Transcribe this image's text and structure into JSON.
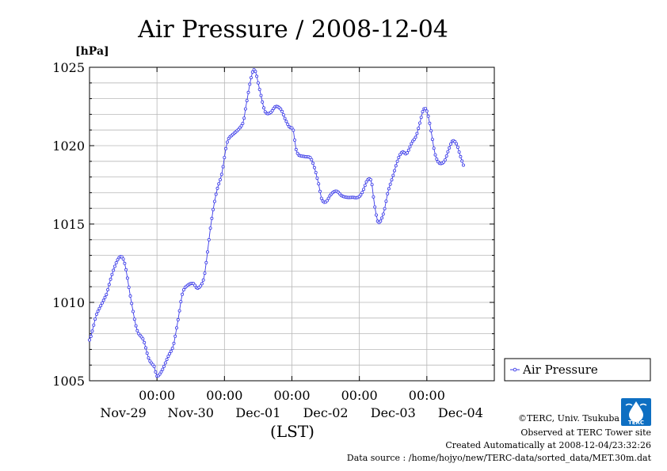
{
  "chart_data": {
    "type": "line",
    "title": "Air Pressure / 2008-12-04",
    "ylabel": "[hPa]",
    "xlabel": "(LST)",
    "ylim": [
      1005,
      1025
    ],
    "yticks": [
      "1025",
      "1020",
      "1015",
      "1010",
      "1005"
    ],
    "xlim_days": [
      0,
      6
    ],
    "xtick_time_labels": [
      "00:00",
      "00:00",
      "00:00",
      "00:00",
      "00:00"
    ],
    "xtick_date_labels": [
      "Nov-29",
      "Nov-30",
      "Dec-01",
      "Dec-02",
      "Dec-03",
      "Dec-04"
    ],
    "grid": true,
    "legend_position": "right",
    "series": [
      {
        "name": "Air Pressure",
        "color": "#3a3ae8",
        "anchors": [
          [
            0.0,
            1007.6
          ],
          [
            0.1,
            1009.2
          ],
          [
            0.25,
            1010.5
          ],
          [
            0.35,
            1012.0
          ],
          [
            0.45,
            1012.9
          ],
          [
            0.52,
            1012.5
          ],
          [
            0.6,
            1010.5
          ],
          [
            0.7,
            1008.3
          ],
          [
            0.8,
            1007.6
          ],
          [
            0.88,
            1006.4
          ],
          [
            0.96,
            1005.9
          ],
          [
            1.0,
            1005.3
          ],
          [
            1.08,
            1005.7
          ],
          [
            1.16,
            1006.5
          ],
          [
            1.24,
            1007.2
          ],
          [
            1.3,
            1008.6
          ],
          [
            1.38,
            1010.6
          ],
          [
            1.46,
            1011.1
          ],
          [
            1.54,
            1011.2
          ],
          [
            1.6,
            1010.9
          ],
          [
            1.68,
            1011.3
          ],
          [
            1.72,
            1012.3
          ],
          [
            1.8,
            1015.0
          ],
          [
            1.88,
            1017.0
          ],
          [
            1.96,
            1018.2
          ],
          [
            2.04,
            1020.2
          ],
          [
            2.12,
            1020.7
          ],
          [
            2.2,
            1021.0
          ],
          [
            2.28,
            1021.5
          ],
          [
            2.32,
            1022.6
          ],
          [
            2.4,
            1024.4
          ],
          [
            2.45,
            1024.8
          ],
          [
            2.52,
            1023.6
          ],
          [
            2.6,
            1022.2
          ],
          [
            2.68,
            1022.1
          ],
          [
            2.76,
            1022.5
          ],
          [
            2.84,
            1022.3
          ],
          [
            2.9,
            1021.7
          ],
          [
            2.96,
            1021.2
          ],
          [
            3.02,
            1021.0
          ],
          [
            3.06,
            1019.8
          ],
          [
            3.1,
            1019.4
          ],
          [
            3.2,
            1019.3
          ],
          [
            3.28,
            1019.2
          ],
          [
            3.34,
            1018.5
          ],
          [
            3.4,
            1017.5
          ],
          [
            3.44,
            1016.6
          ],
          [
            3.5,
            1016.4
          ],
          [
            3.58,
            1016.9
          ],
          [
            3.66,
            1017.1
          ],
          [
            3.74,
            1016.8
          ],
          [
            3.82,
            1016.7
          ],
          [
            3.9,
            1016.7
          ],
          [
            3.98,
            1016.7
          ],
          [
            4.04,
            1017.0
          ],
          [
            4.12,
            1017.8
          ],
          [
            4.18,
            1017.7
          ],
          [
            4.22,
            1016.3
          ],
          [
            4.28,
            1015.1
          ],
          [
            4.36,
            1015.7
          ],
          [
            4.42,
            1017.0
          ],
          [
            4.5,
            1018.1
          ],
          [
            4.58,
            1019.2
          ],
          [
            4.64,
            1019.6
          ],
          [
            4.7,
            1019.5
          ],
          [
            4.78,
            1020.2
          ],
          [
            4.84,
            1020.6
          ],
          [
            4.9,
            1021.5
          ],
          [
            4.95,
            1022.3
          ],
          [
            5.0,
            1022.2
          ],
          [
            5.06,
            1021.0
          ],
          [
            5.12,
            1019.5
          ],
          [
            5.18,
            1018.9
          ],
          [
            5.26,
            1019.0
          ],
          [
            5.32,
            1019.7
          ],
          [
            5.38,
            1020.3
          ],
          [
            5.44,
            1020.1
          ],
          [
            5.5,
            1019.3
          ],
          [
            5.56,
            1018.6
          ]
        ]
      }
    ]
  },
  "credits": {
    "copyright": "©TERC, Univ. Tsukuba",
    "observed": "Observed at TERC Tower site",
    "created": "Created Automatically at 2008-12-04/23:32:26",
    "source": "Data source : /home/hojyo/new/TERC-data/sorted_data/MET.30m.dat",
    "logo_text": "TERC"
  }
}
